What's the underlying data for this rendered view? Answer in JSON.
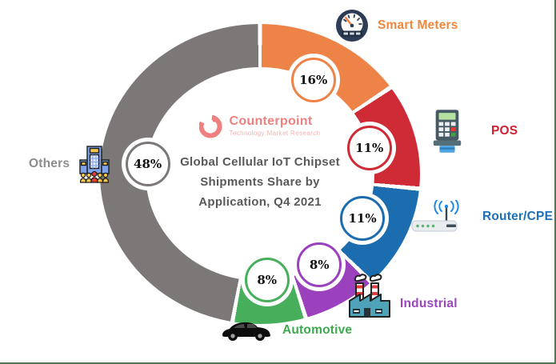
{
  "page": {
    "background": "#FFFFFF",
    "frame_border_color": "#4C7A52"
  },
  "brand": {
    "name": "Counterpoint",
    "subtitle": "Technology Market Research",
    "name_color": "#F08080",
    "subtitle_color": "#F2B3B1"
  },
  "center": {
    "title_lines": [
      "Global Cellular IoT Chipset",
      "Shipments Share by",
      "Application, Q4 2021"
    ],
    "title_color": "#595959"
  },
  "chart_data": {
    "type": "pie",
    "subtype": "donut",
    "title": "Global Cellular IoT Chipset Shipments Share by Application, Q4 2021",
    "categories": [
      "Smart Meters",
      "POS",
      "Router/CPE",
      "Industrial",
      "Automotive",
      "Others"
    ],
    "values": [
      16,
      11,
      11,
      8,
      8,
      48
    ],
    "value_labels": [
      "16%",
      "11%",
      "11%",
      "8%",
      "8%",
      "48%"
    ],
    "units": "%",
    "segment_colors": [
      "#ED8347",
      "#CE2B37",
      "#1C6CB0",
      "#9C41BE",
      "#47AF5B",
      "#7D7878"
    ],
    "label_colors": [
      "#F0873C",
      "#D02030",
      "#1C6FBA",
      "#9C44BE",
      "#3BAA4E",
      "#8C8C8C"
    ],
    "start_angle_deg": 0,
    "direction": "clockwise",
    "legend_position": "around",
    "grid": false
  },
  "legend": {
    "smart_meters": {
      "label": "Smart Meters",
      "icon": "gauge-meter-icon"
    },
    "pos": {
      "label": "POS",
      "icon": "payment-terminal-icon"
    },
    "router": {
      "label": "Router/CPE",
      "icon": "wifi-router-icon"
    },
    "industrial": {
      "label": "Industrial",
      "icon": "factory-icon"
    },
    "automotive": {
      "label": "Automotive",
      "icon": "car-icon"
    },
    "others": {
      "label": "Others",
      "icon": "organization-building-icon"
    }
  }
}
